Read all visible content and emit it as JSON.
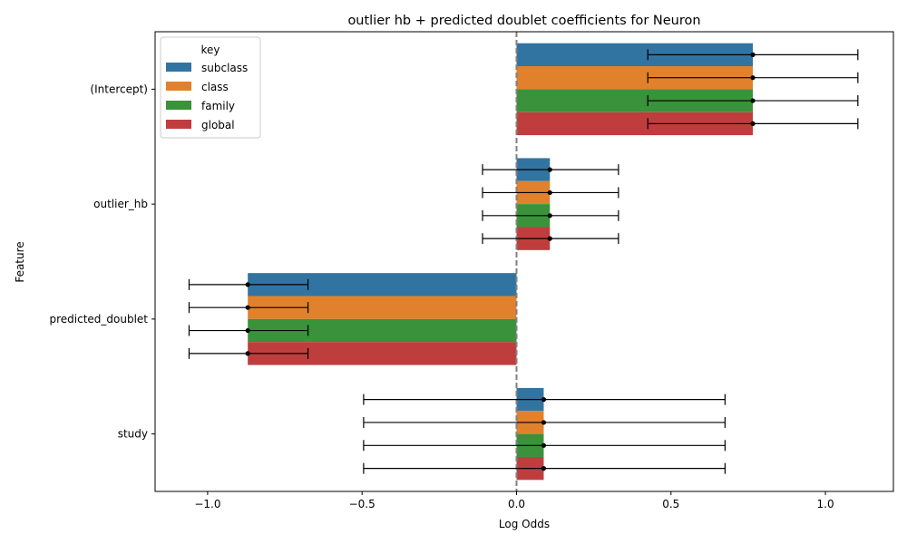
{
  "chart_data": {
    "type": "bar",
    "orientation": "horizontal",
    "title": "outlier hb + predicted doublet coefficients for Neuron",
    "xlabel": "Log Odds",
    "ylabel": "Feature",
    "xlim": [
      -1.17,
      1.22
    ],
    "xticks": [
      -1.0,
      -0.5,
      0.0,
      0.5,
      1.0
    ],
    "xtick_labels": [
      "−1.0",
      "−0.5",
      "0.0",
      "0.5",
      "1.0"
    ],
    "reference_line": {
      "x": 0,
      "style": "dashed",
      "color": "#808080"
    },
    "categories": [
      "(Intercept)",
      "outlier_hb",
      "predicted_doublet",
      "study"
    ],
    "legend": {
      "title": "key",
      "placement": "upper-left"
    },
    "series": [
      {
        "name": "subclass",
        "color": "#3274a1",
        "values": [
          0.765,
          0.108,
          -0.87,
          0.088
        ],
        "ci_low": [
          0.425,
          -0.11,
          -1.06,
          -0.495
        ],
        "ci_high": [
          1.105,
          0.33,
          -0.675,
          0.675
        ]
      },
      {
        "name": "class",
        "color": "#e1812c",
        "values": [
          0.765,
          0.108,
          -0.87,
          0.088
        ],
        "ci_low": [
          0.425,
          -0.11,
          -1.06,
          -0.495
        ],
        "ci_high": [
          1.105,
          0.33,
          -0.675,
          0.675
        ]
      },
      {
        "name": "family",
        "color": "#3a923a",
        "values": [
          0.765,
          0.108,
          -0.87,
          0.088
        ],
        "ci_low": [
          0.425,
          -0.11,
          -1.06,
          -0.495
        ],
        "ci_high": [
          1.105,
          0.33,
          -0.675,
          0.675
        ]
      },
      {
        "name": "global",
        "color": "#c03d3e",
        "values": [
          0.765,
          0.108,
          -0.87,
          0.088
        ],
        "ci_low": [
          0.425,
          -0.11,
          -1.06,
          -0.495
        ],
        "ci_high": [
          1.105,
          0.33,
          -0.675,
          0.675
        ]
      }
    ],
    "grid": false
  }
}
